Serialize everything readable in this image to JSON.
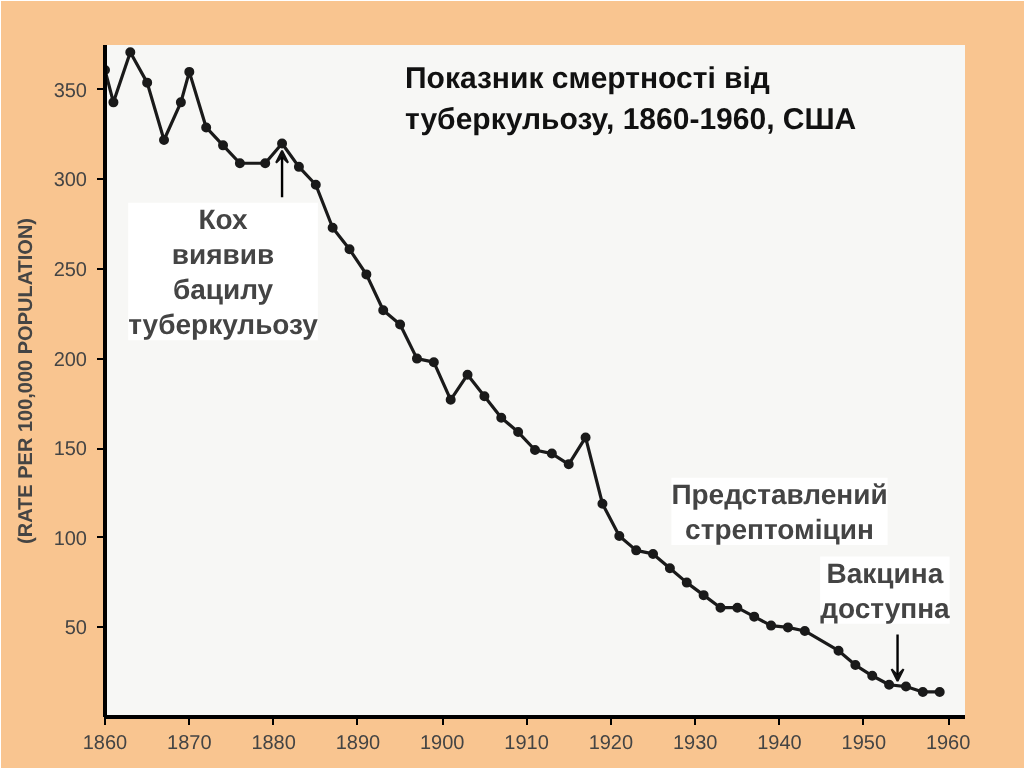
{
  "chart_data": {
    "type": "line",
    "title": "Показник смертності від туберкульозу, 1860-1960, США",
    "ylabel": "(RATE PER 100,000 POPULATION)",
    "x": [
      1860,
      1861,
      1863,
      1865,
      1867,
      1869,
      1870,
      1872,
      1874,
      1876,
      1879,
      1881,
      1883,
      1885,
      1887,
      1889,
      1891,
      1893,
      1895,
      1897,
      1899,
      1901,
      1903,
      1905,
      1907,
      1909,
      1911,
      1913,
      1915,
      1917,
      1919,
      1921,
      1923,
      1925,
      1927,
      1929,
      1931,
      1933,
      1935,
      1937,
      1939,
      1941,
      1943,
      1947,
      1949,
      1951,
      1953,
      1955,
      1957,
      1959
    ],
    "series": [
      {
        "color": "#1a1a1a",
        "values": [
          361,
          343,
          371,
          354,
          322,
          343,
          360,
          329,
          319,
          309,
          309,
          320,
          307,
          297,
          273,
          261,
          247,
          227,
          219,
          200,
          198,
          177,
          191,
          179,
          167,
          159,
          149,
          147,
          141,
          156,
          119,
          101,
          93,
          91,
          83,
          75,
          68,
          61,
          61,
          56,
          51,
          50,
          48,
          37,
          29,
          23,
          18,
          17,
          14,
          14
        ]
      }
    ],
    "xlim": [
      1860,
      1962
    ],
    "ylim": [
      0,
      375
    ],
    "xticks": [
      1860,
      1870,
      1880,
      1890,
      1900,
      1910,
      1920,
      1930,
      1940,
      1950,
      1960
    ],
    "yticks": [
      50,
      100,
      150,
      200,
      250,
      300,
      350
    ],
    "marker": "circle",
    "line_style": "solid",
    "grid": false,
    "annotations": [
      {
        "text": "Кох\nвиявив\nбацилу\nтуберкульозу",
        "x": 1881,
        "y": 320
      },
      "Представлений\nстрептоміцин",
      {
        "text": "Вакцина\nдоступна",
        "x": 1954,
        "y": 18
      }
    ]
  }
}
